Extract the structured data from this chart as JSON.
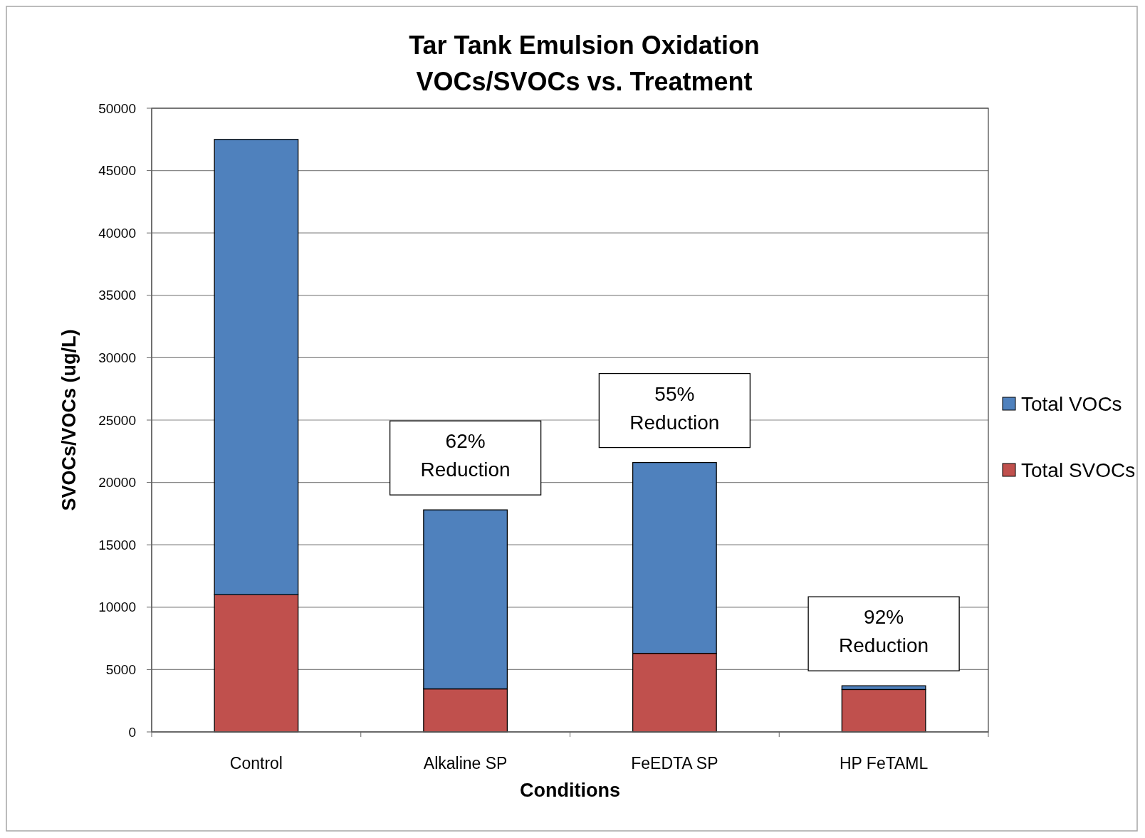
{
  "chart_data": {
    "type": "bar",
    "title": "Tar Tank Emulsion Oxidation\nVOCs/SVOCs vs. Treatment",
    "xlabel": "Conditions",
    "ylabel": "SVOCs/VOCs (ug/L)",
    "categories": [
      "Control",
      "Alkaline SP",
      "FeEDTA SP",
      "HP FeTAML"
    ],
    "stacked": true,
    "series": [
      {
        "name": "Total SVOCs",
        "color": "#c0504d",
        "values": [
          11000,
          3450,
          6300,
          3400
        ]
      },
      {
        "name": "Total VOCs",
        "color": "#4f81bd",
        "values": [
          36500,
          14350,
          15300,
          300
        ]
      }
    ],
    "ylim": [
      0,
      50000
    ],
    "yticks": [
      0,
      5000,
      10000,
      15000,
      20000,
      25000,
      30000,
      35000,
      40000,
      45000,
      50000
    ],
    "grid": "y",
    "legend": "right",
    "annotations": [
      {
        "text": "62%\nReduction",
        "x": "Alkaline SP",
        "y": 17800
      },
      {
        "text": "55%\nReduction",
        "x": "FeEDTA SP",
        "y": 21600
      },
      {
        "text": "92%\nReduction",
        "x": "HP FeTAML",
        "y": 3700
      }
    ]
  }
}
